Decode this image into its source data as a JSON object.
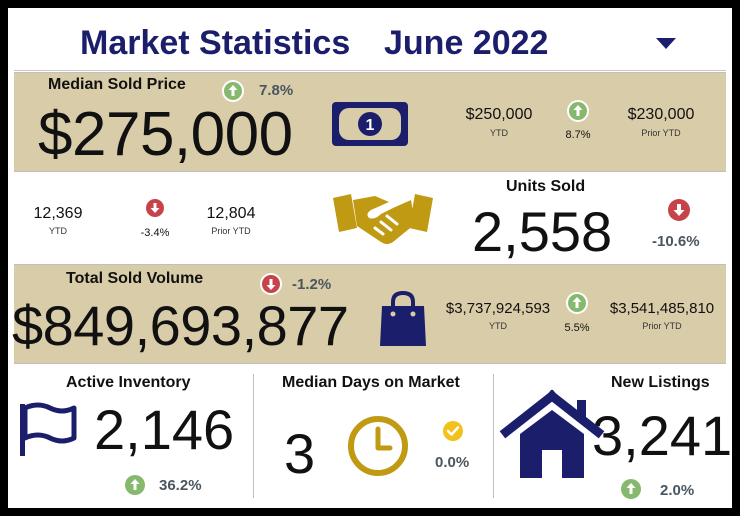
{
  "header": {
    "title": "Market Statistics",
    "period": "June 2022"
  },
  "median_sold_price": {
    "label": "Median Sold Price",
    "value": "$275,000",
    "change": "7.8%",
    "ytd_value": "$250,000",
    "ytd_label": "YTD",
    "ytd_change": "8.7%",
    "prior_value": "$230,000",
    "prior_label": "Prior YTD"
  },
  "units_sold": {
    "label": "Units Sold",
    "value": "2,558",
    "change": "-10.6%",
    "ytd_value": "12,369",
    "ytd_label": "YTD",
    "ytd_change": "-3.4%",
    "prior_value": "12,804",
    "prior_label": "Prior YTD"
  },
  "total_sold_volume": {
    "label": "Total Sold Volume",
    "value": "$849,693,877",
    "change": "-1.2%",
    "ytd_value": "$3,737,924,593",
    "ytd_label": "YTD",
    "ytd_change": "5.5%",
    "prior_value": "$3,541,485,810",
    "prior_label": "Prior YTD"
  },
  "active_inventory": {
    "label": "Active Inventory",
    "value": "2,146",
    "change": "36.2%"
  },
  "median_days_on_market": {
    "label": "Median Days on Market",
    "value": "3",
    "change": "0.0%"
  },
  "new_listings": {
    "label": "New Listings",
    "value": "3,241",
    "change": "2.0%"
  },
  "colors": {
    "navy": "#1b1f6b",
    "tan": "#d9cca9",
    "gold": "#c09a12",
    "up_green": "#86b86e",
    "down_red": "#c6434a",
    "check_yellow": "#f2c21a"
  },
  "icons": [
    "arrow-up-icon",
    "arrow-down-icon",
    "check-icon",
    "caret-down-icon",
    "dollar-bill-icon",
    "handshake-icon",
    "shopping-bag-icon",
    "flag-icon",
    "clock-icon",
    "house-icon"
  ]
}
